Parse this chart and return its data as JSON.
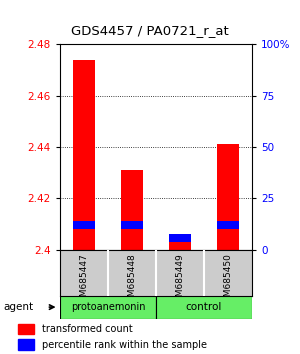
{
  "title": "GDS4457 / PA0721_r_at",
  "samples": [
    "GSM685447",
    "GSM685448",
    "GSM685449",
    "GSM685450"
  ],
  "red_bottoms": [
    2.4,
    2.4,
    2.4,
    2.4
  ],
  "red_tops": [
    2.474,
    2.431,
    2.404,
    2.441
  ],
  "blue_bottoms": [
    2.408,
    2.408,
    2.403,
    2.408
  ],
  "blue_tops": [
    2.411,
    2.411,
    2.406,
    2.411
  ],
  "ylim": [
    2.4,
    2.48
  ],
  "yticks_left": [
    2.4,
    2.42,
    2.44,
    2.46,
    2.48
  ],
  "ytick_left_labels": [
    "2.4",
    "2.42",
    "2.44",
    "2.46",
    "2.48"
  ],
  "yticks_right": [
    0,
    25,
    50,
    75,
    100
  ],
  "ytick_right_labels": [
    "0",
    "25",
    "50",
    "75",
    "100%"
  ],
  "bar_width": 0.45,
  "bg_color": "#ffffff",
  "sample_box_color": "#cccccc",
  "group_green": "#66ee66"
}
